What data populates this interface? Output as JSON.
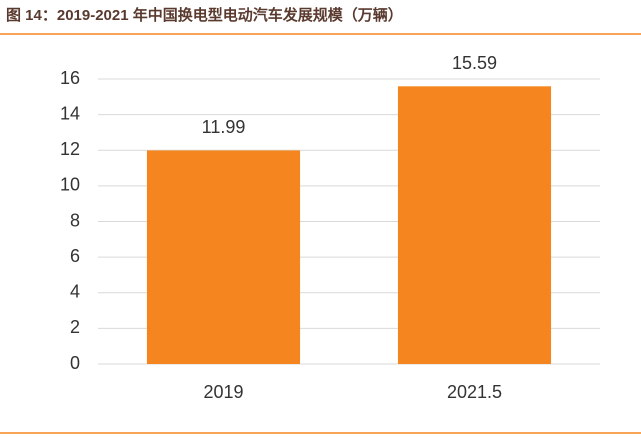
{
  "chart_data": {
    "type": "bar",
    "title": "图 14：2019-2021 年中国换电型电动汽车发展规模（万辆）",
    "categories": [
      "2019",
      "2021.5"
    ],
    "values": [
      11.99,
      15.59
    ],
    "color": "#f5861f",
    "ylim": [
      0,
      16
    ],
    "yticks": [
      0,
      2,
      4,
      6,
      8,
      10,
      12,
      14,
      16
    ],
    "grid": true
  }
}
